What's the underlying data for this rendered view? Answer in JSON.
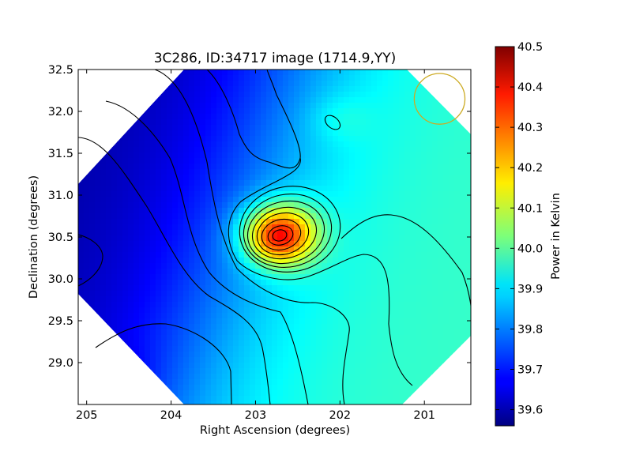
{
  "chart_data": {
    "type": "heatmap",
    "title": "3C286, ID:34717 image (1714.9,YY)",
    "xlabel": "Right Ascension (degrees)",
    "ylabel": "Declination (degrees)",
    "xlim": [
      205.1,
      200.45
    ],
    "ylim": [
      28.5,
      32.5
    ],
    "x_ticks": [
      {
        "value": 205,
        "label": "205"
      },
      {
        "value": 204,
        "label": "204"
      },
      {
        "value": 203,
        "label": "203"
      },
      {
        "value": 202,
        "label": "202"
      },
      {
        "value": 201,
        "label": "201"
      }
    ],
    "y_ticks": [
      {
        "value": 29.0,
        "label": "29.0"
      },
      {
        "value": 29.5,
        "label": "29.5"
      },
      {
        "value": 30.0,
        "label": "30.0"
      },
      {
        "value": 30.5,
        "label": "30.5"
      },
      {
        "value": 31.0,
        "label": "31.0"
      },
      {
        "value": 31.5,
        "label": "31.5"
      },
      {
        "value": 32.0,
        "label": "32.0"
      },
      {
        "value": 32.5,
        "label": "32.5"
      }
    ],
    "colormap": "jet",
    "colorbar": {
      "label": "Power in Kelvin",
      "min": 39.56,
      "max": 40.5,
      "ticks": [
        {
          "value": 39.6,
          "label": "39.6"
        },
        {
          "value": 39.7,
          "label": "39.7"
        },
        {
          "value": 39.8,
          "label": "39.8"
        },
        {
          "value": 39.9,
          "label": "39.9"
        },
        {
          "value": 40.0,
          "label": "40.0"
        },
        {
          "value": 40.1,
          "label": "40.1"
        },
        {
          "value": 40.2,
          "label": "40.2"
        },
        {
          "value": 40.3,
          "label": "40.3"
        },
        {
          "value": 40.4,
          "label": "40.4"
        },
        {
          "value": 40.5,
          "label": "40.5"
        }
      ]
    },
    "source_peak": {
      "ra": 202.72,
      "dec": 30.52,
      "value": 40.5
    },
    "beam_circle": {
      "ra": 200.82,
      "dec": 32.15,
      "radius_deg": 0.3,
      "color": "#ccaa22"
    },
    "contour_color": "#000000",
    "grid": false
  }
}
